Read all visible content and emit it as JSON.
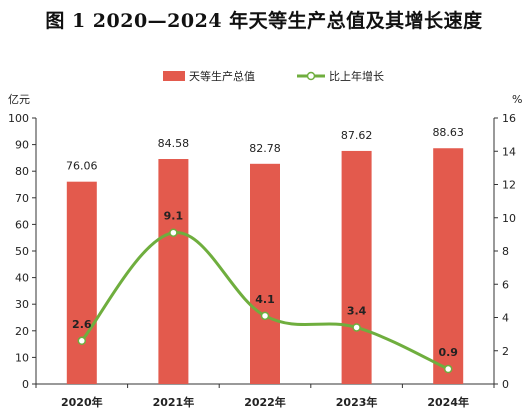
{
  "title": "图 1  2020—2024 年天等生产总值及其增长速度",
  "chart_data": {
    "type": "bar",
    "categories": [
      "2020年",
      "2021年",
      "2022年",
      "2023年",
      "2024年"
    ],
    "series": [
      {
        "name": "天等生产总值",
        "type": "bar",
        "axis": "left",
        "values": [
          76.06,
          84.58,
          82.78,
          87.62,
          88.63
        ],
        "color": "#e35a4d"
      },
      {
        "name": "比上年增长",
        "type": "line",
        "axis": "right",
        "smooth": true,
        "values": [
          2.6,
          9.1,
          4.1,
          3.4,
          0.9
        ],
        "color": "#6fae3e"
      }
    ],
    "y_left": {
      "unit": "亿元",
      "ylim": [
        0,
        100
      ],
      "ticks": [
        0,
        10,
        20,
        30,
        40,
        50,
        60,
        70,
        80,
        90,
        100
      ]
    },
    "y_right": {
      "unit": "%",
      "ylim": [
        0,
        16
      ],
      "ticks": [
        0,
        2,
        4,
        6,
        8,
        10,
        12,
        14,
        16
      ]
    },
    "value_labels": [
      "76.06",
      "84.58",
      "82.78",
      "87.62",
      "88.63"
    ],
    "point_labels": [
      "2.6",
      "9.1",
      "4.1",
      "3.4",
      "0.9"
    ],
    "legend_position": "top-center",
    "grid": false
  }
}
